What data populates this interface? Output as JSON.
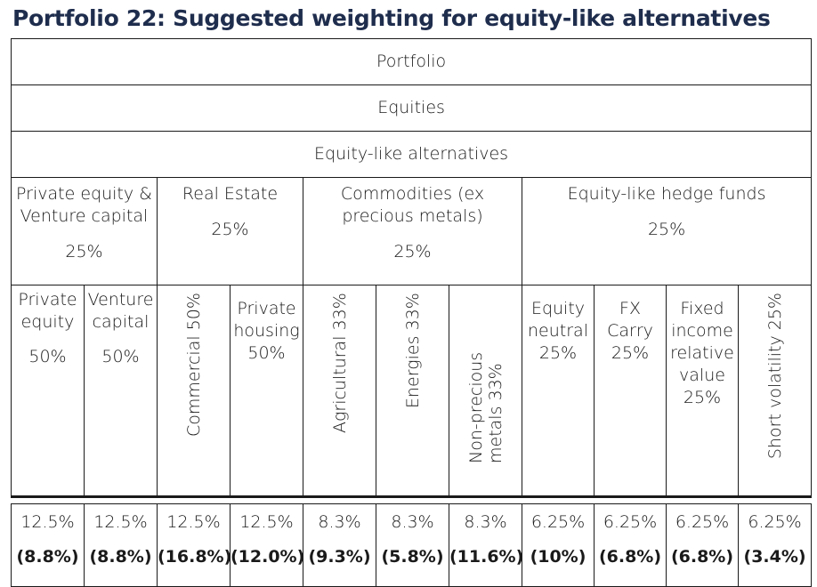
{
  "title": "Portfolio 22: Suggested weighting for equity-like alternatives",
  "levels": {
    "portfolio": "Portfolio",
    "equities": "Equities",
    "alternatives": "Equity-like alternatives"
  },
  "groups": [
    {
      "name": "Private equity & Venture capital",
      "pct": "25%"
    },
    {
      "name": "Real Estate",
      "pct": "25%"
    },
    {
      "name": "Commodities (ex precious metals)",
      "pct": "25%"
    },
    {
      "name": "Equity-like hedge funds",
      "pct": "25%"
    }
  ],
  "subcategories": [
    {
      "name": "Private equity",
      "pct": "50%"
    },
    {
      "name": "Venture capital",
      "pct": "50%"
    },
    {
      "name": "Commercial 50%"
    },
    {
      "name": "Private housing 50%"
    },
    {
      "name": "Agricultural 33%"
    },
    {
      "name": "Energies 33%"
    },
    {
      "name": "Non-precious metals 33%"
    },
    {
      "name": "Equity neutral 25%"
    },
    {
      "name": "FX Carry 25%"
    },
    {
      "name": "Fixed income relative value 25%"
    },
    {
      "name": "Short volatility 25%"
    }
  ],
  "weights": [
    "12.5%",
    "12.5%",
    "12.5%",
    "12.5%",
    "8.3%",
    "8.3%",
    "8.3%",
    "6.25%",
    "6.25%",
    "6.25%",
    "6.25%"
  ],
  "contributions": [
    "(8.8%)",
    "(8.8%)",
    "(16.8%)",
    "(12.0%)",
    "(9.3%)",
    "(5.8%)",
    "(11.6%)",
    "(10%)",
    "(6.8%)",
    "(6.8%)",
    "(3.4%)"
  ]
}
